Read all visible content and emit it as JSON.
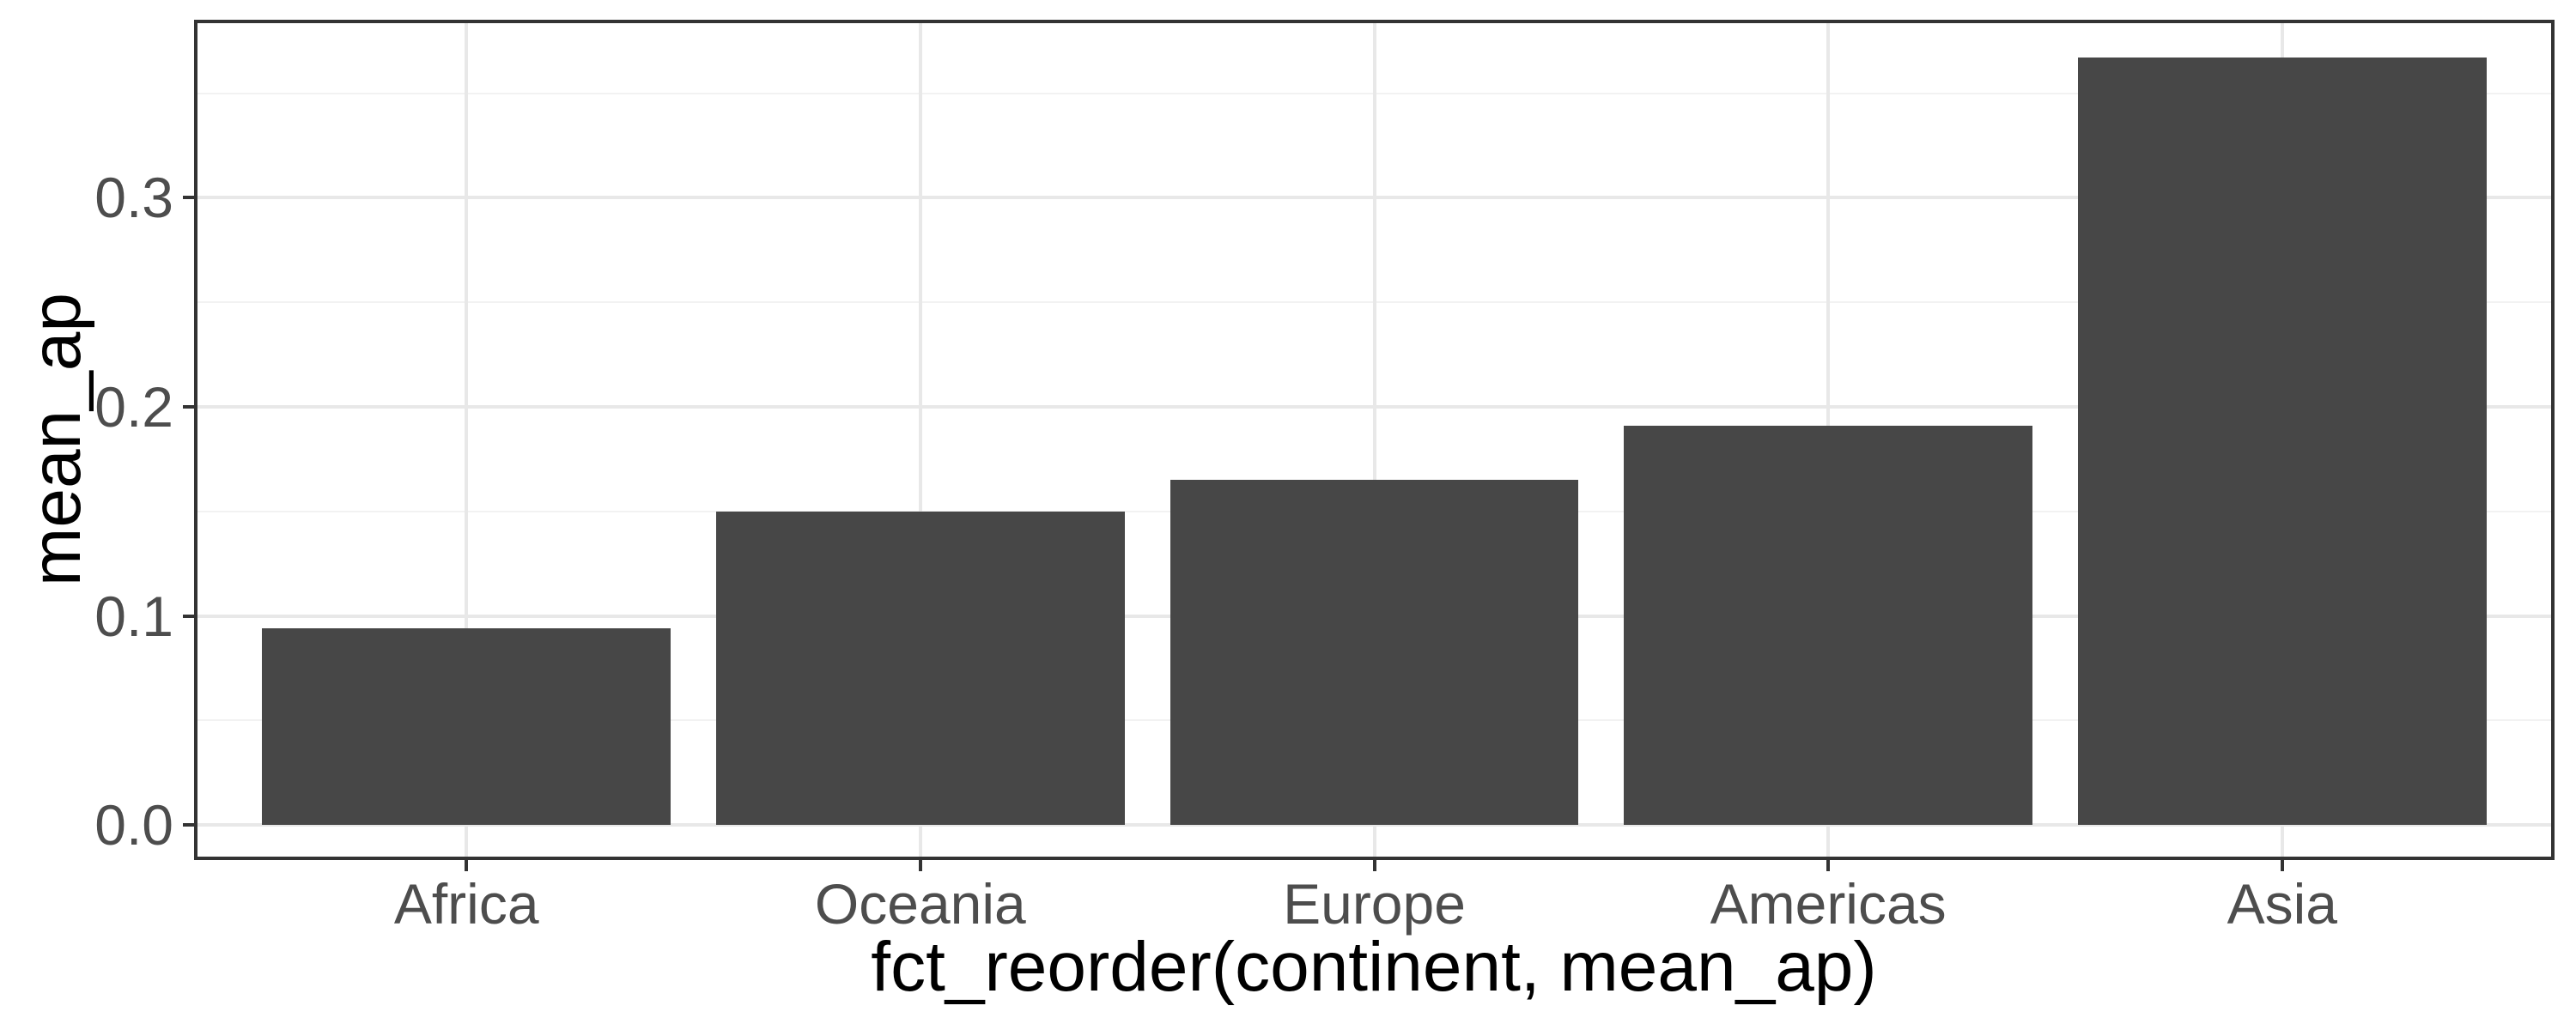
{
  "chart_data": {
    "type": "bar",
    "title": "",
    "categories": [
      "Africa",
      "Oceania",
      "Europe",
      "Americas",
      "Asia"
    ],
    "values": [
      0.094,
      0.15,
      0.165,
      0.191,
      0.367
    ],
    "xlabel": "fct_reorder(continent, mean_ap)",
    "ylabel": "mean_ap",
    "yticks": [
      0.0,
      0.1,
      0.2,
      0.3
    ],
    "ytick_labels": [
      "0.0",
      "0.1",
      "0.2",
      "0.3"
    ],
    "yminor_ticks": [
      0.05,
      0.15,
      0.25,
      0.35
    ],
    "ylim": [
      -0.0168,
      0.3852
    ],
    "grid": "major-and-minor",
    "legend_position": "none",
    "style": {
      "bar_fill": "#474747",
      "panel_border": "#333333",
      "grid_major": "#e8e8e8",
      "grid_minor": "#f2f2f2",
      "tick_color": "#333333",
      "tick_label_color": "#4d4d4d",
      "axis_title_color": "#000000",
      "background": "#ffffff"
    }
  }
}
